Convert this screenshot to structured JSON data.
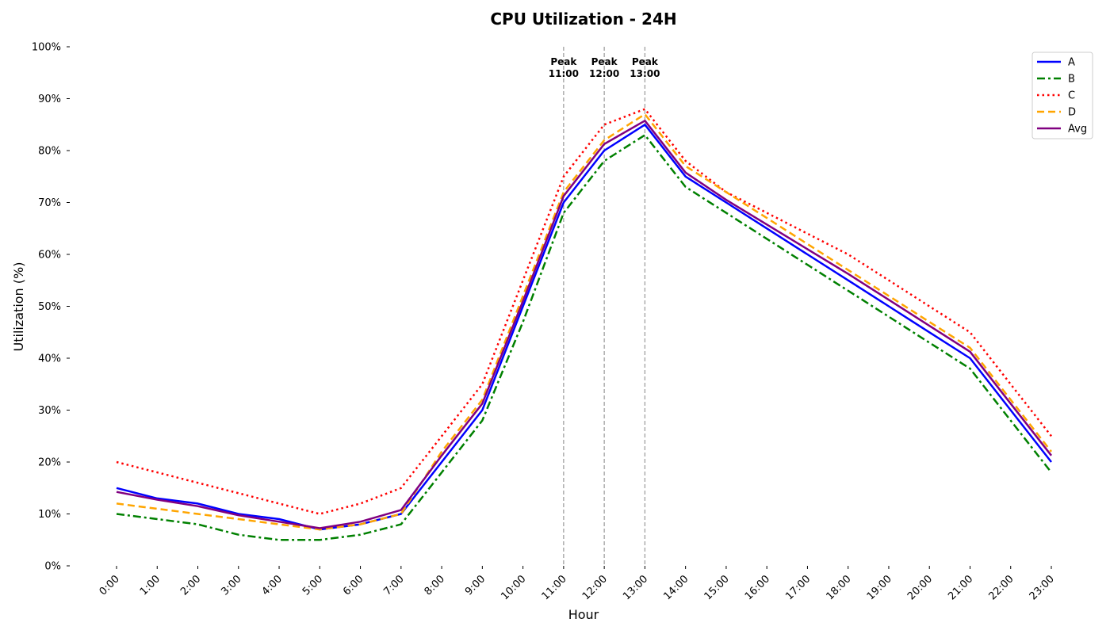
{
  "chart_data": {
    "type": "line",
    "title": "CPU Utilization - 24H",
    "xlabel": "Hour",
    "ylabel": "Utilization (%)",
    "categories": [
      "0:00",
      "1:00",
      "2:00",
      "3:00",
      "4:00",
      "5:00",
      "6:00",
      "7:00",
      "8:00",
      "9:00",
      "10:00",
      "11:00",
      "12:00",
      "13:00",
      "14:00",
      "15:00",
      "16:00",
      "17:00",
      "18:00",
      "19:00",
      "20:00",
      "21:00",
      "22:00",
      "23:00"
    ],
    "ylim": [
      0,
      100
    ],
    "yticks": [
      "0%",
      "10%",
      "20%",
      "30%",
      "40%",
      "50%",
      "60%",
      "70%",
      "80%",
      "90%",
      "100%"
    ],
    "grid": false,
    "legend_position": "top-right",
    "series": [
      {
        "name": "A",
        "color": "#0000ff",
        "style": "solid",
        "values": [
          15,
          13,
          12,
          10,
          9,
          7,
          8,
          10,
          20,
          30,
          50,
          70,
          80,
          85,
          75,
          70,
          65,
          60,
          55,
          50,
          45,
          40,
          30,
          20
        ]
      },
      {
        "name": "B",
        "color": "#008000",
        "style": "dashdot",
        "values": [
          10,
          9,
          8,
          6,
          5,
          5,
          6,
          8,
          18,
          28,
          47,
          68,
          78,
          83,
          73,
          68,
          63,
          58,
          53,
          48,
          43,
          38,
          28,
          18
        ]
      },
      {
        "name": "C",
        "color": "#ff0000",
        "style": "dotted",
        "values": [
          20,
          18,
          16,
          14,
          12,
          10,
          12,
          15,
          25,
          35,
          55,
          75,
          85,
          88,
          78,
          72,
          68,
          64,
          60,
          55,
          50,
          45,
          35,
          25
        ]
      },
      {
        "name": "D",
        "color": "#ffa500",
        "style": "dashed",
        "values": [
          12,
          11,
          10,
          9,
          8,
          7,
          8,
          10,
          22,
          32,
          52,
          72,
          82,
          87,
          77,
          72,
          67,
          62,
          57,
          52,
          47,
          42,
          32,
          22
        ]
      },
      {
        "name": "Avg",
        "color": "#800080",
        "style": "solid",
        "values": [
          14.25,
          12.75,
          11.5,
          9.75,
          8.5,
          7.25,
          8.5,
          10.75,
          21.25,
          31.25,
          51,
          71.25,
          81.25,
          85.75,
          75.75,
          70.5,
          65.75,
          61,
          56.25,
          51.25,
          46.25,
          41.25,
          31.25,
          21.25
        ]
      }
    ],
    "peaks": [
      {
        "hour_index": 11,
        "label_line1": "Peak",
        "label_line2": "11:00"
      },
      {
        "hour_index": 12,
        "label_line1": "Peak",
        "label_line2": "12:00"
      },
      {
        "hour_index": 13,
        "label_line1": "Peak",
        "label_line2": "13:00"
      }
    ]
  }
}
